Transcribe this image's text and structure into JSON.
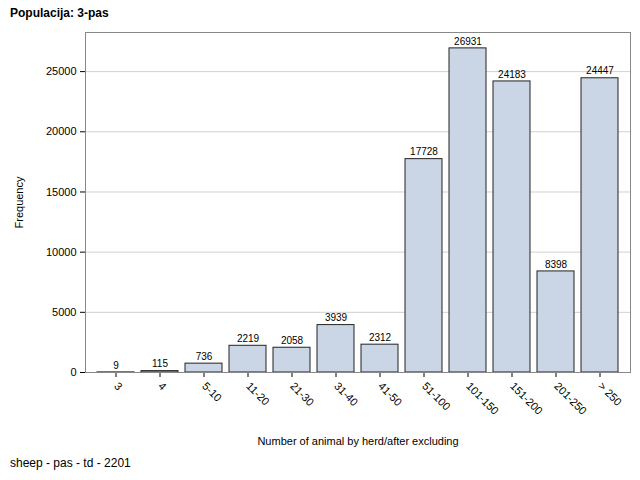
{
  "chart_data": {
    "type": "bar",
    "title": "Populacija: 3-pas",
    "caption": "sheep - pas - td - 2201",
    "x_label": "Number of animal by herd/after excluding",
    "y_label": "Frequency",
    "categories": [
      "3",
      "4",
      "5-10",
      "11-20",
      "21-30",
      "31-40",
      "41-50",
      "51-100",
      "101-150",
      "151-200",
      "201-250",
      "> 250"
    ],
    "values": [
      9,
      115,
      736,
      2219,
      2058,
      3939,
      2312,
      17728,
      26931,
      24183,
      8398,
      24447
    ],
    "color": "#cad5e5",
    "ylim": [
      0,
      28250
    ],
    "yticks": [
      0,
      5000,
      10000,
      15000,
      20000,
      25000
    ],
    "grid": true,
    "data_labels": true
  }
}
